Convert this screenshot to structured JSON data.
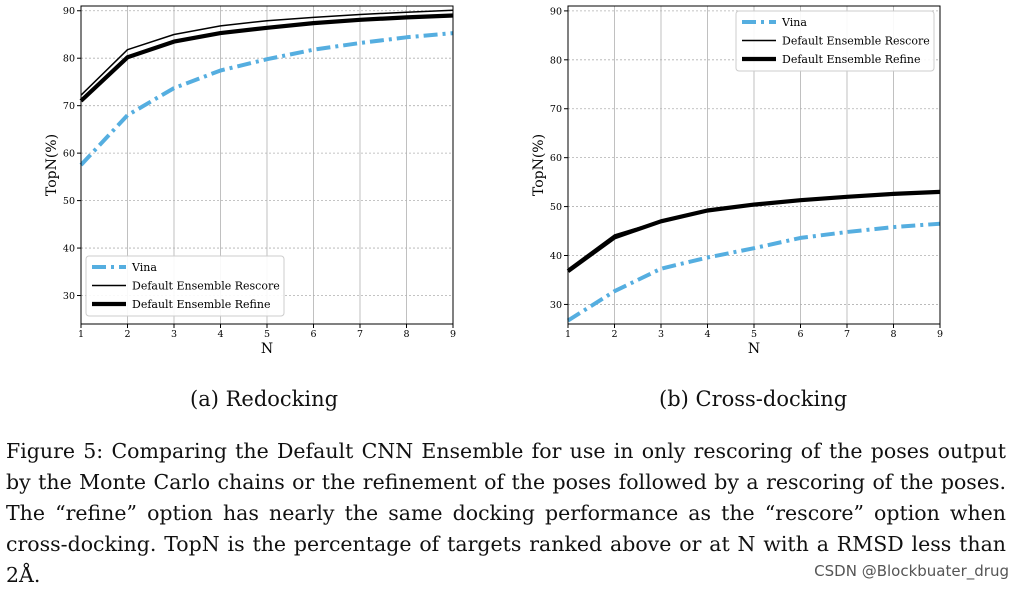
{
  "chart_data": [
    {
      "type": "line",
      "subtitle": "(a) Redocking",
      "xlabel": "N",
      "ylabel": "TopN(%)",
      "x": [
        1,
        2,
        3,
        4,
        5,
        6,
        7,
        8,
        9
      ],
      "xlim": [
        1,
        9
      ],
      "ylim": [
        24,
        91
      ],
      "xticks": [
        "1",
        "2",
        "3",
        "4",
        "5",
        "6",
        "7",
        "8",
        "9"
      ],
      "yticks": [
        "30",
        "40",
        "50",
        "60",
        "70",
        "80",
        "90"
      ],
      "ytick_values": [
        30,
        40,
        50,
        60,
        70,
        80,
        90
      ],
      "grid": true,
      "legend_position": "lower-left",
      "series": [
        {
          "name": "Vina",
          "values": [
            57.5,
            68.0,
            73.7,
            77.4,
            79.8,
            81.8,
            83.2,
            84.4,
            85.3
          ],
          "color": "#55aee0",
          "style": "dashdot"
        },
        {
          "name": "Default Ensemble Rescore",
          "values": [
            72.2,
            81.8,
            85.0,
            86.8,
            87.9,
            88.6,
            89.2,
            89.7,
            90.1
          ],
          "color": "#000000",
          "style": "thin"
        },
        {
          "name": "Default Ensemble Refine",
          "values": [
            71.0,
            80.2,
            83.5,
            85.3,
            86.4,
            87.4,
            88.1,
            88.6,
            89.0
          ],
          "color": "#000000",
          "style": "thick"
        }
      ]
    },
    {
      "type": "line",
      "subtitle": "(b) Cross-docking",
      "xlabel": "N",
      "ylabel": "TopN(%)",
      "x": [
        1,
        2,
        3,
        4,
        5,
        6,
        7,
        8,
        9
      ],
      "xlim": [
        1,
        9
      ],
      "ylim": [
        26,
        91
      ],
      "xticks": [
        "1",
        "2",
        "3",
        "4",
        "5",
        "6",
        "7",
        "8",
        "9"
      ],
      "yticks": [
        "30",
        "40",
        "50",
        "60",
        "70",
        "80",
        "90"
      ],
      "ytick_values": [
        30,
        40,
        50,
        60,
        70,
        80,
        90
      ],
      "grid": true,
      "legend_position": "top-right",
      "series": [
        {
          "name": "Vina",
          "values": [
            26.7,
            32.7,
            37.3,
            39.6,
            41.5,
            43.6,
            44.8,
            45.8,
            46.5
          ],
          "color": "#55aee0",
          "style": "dashdot"
        },
        {
          "name": "Default Ensemble Rescore",
          "values": [
            37.2,
            44.2,
            47.1,
            49.3,
            50.4,
            51.3,
            52.0,
            52.6,
            53.0
          ],
          "color": "#000000",
          "style": "thin"
        },
        {
          "name": "Default Ensemble Refine",
          "values": [
            36.8,
            43.7,
            47.0,
            49.2,
            50.4,
            51.3,
            52.0,
            52.6,
            53.0
          ],
          "color": "#000000",
          "style": "thick"
        }
      ]
    }
  ],
  "caption": "Figure 5: Comparing the Default CNN Ensemble for use in only rescoring of the poses output by the Monte Carlo chains or the refinement of the poses followed by a rescoring of the poses. The “refine” option has nearly the same docking performance as the “rescore” option when cross-docking. TopN is the percentage of targets ranked above or at N with a RMSD less than 2Å.",
  "watermark": "CSDN @Blockbuater_drug"
}
